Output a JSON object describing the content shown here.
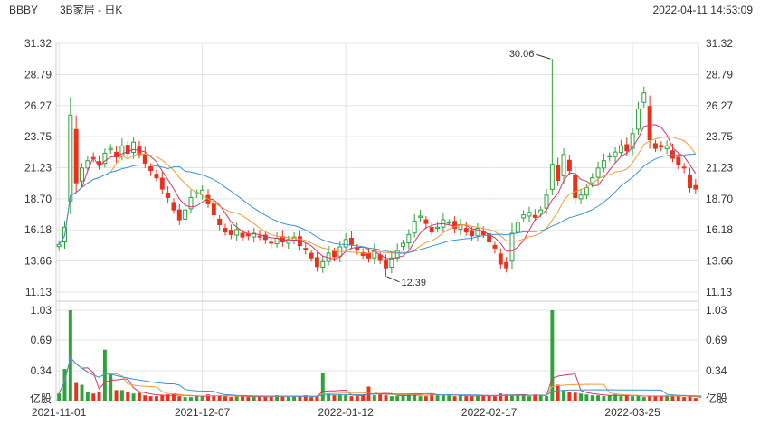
{
  "header": {
    "ticker": "BBBY",
    "name": "3B家居 - 日K",
    "timestamp": "2022-04-11 14:53:09"
  },
  "colors": {
    "up": "#2ea33a",
    "down": "#e8321c",
    "ma5": "#d6336c",
    "ma10": "#f29c38",
    "ma20": "#3a93d6",
    "grid": "#e3e3e3",
    "axis": "#cccccc"
  },
  "chart_data": {
    "type": "candlestick",
    "price_axis": {
      "ticks": [
        "31.32",
        "28.79",
        "26.27",
        "23.75",
        "21.23",
        "18.70",
        "16.18",
        "13.66",
        "11.13"
      ],
      "min": 11.13,
      "max": 31.32
    },
    "volume_axis": {
      "ticks": [
        "1.03",
        "0.69",
        "0.34"
      ],
      "unit": "亿股",
      "max": 1.03
    },
    "date_labels": [
      {
        "index": 0,
        "label": "2021-11-01"
      },
      {
        "index": 25,
        "label": "2021-12-07"
      },
      {
        "index": 50,
        "label": "2022-01-12"
      },
      {
        "index": 75,
        "label": "2022-02-17"
      },
      {
        "index": 100,
        "label": "2022-03-25"
      }
    ],
    "annotations": {
      "high": {
        "index": 86,
        "value": 30.06,
        "label": "30.06"
      },
      "low": {
        "index": 57,
        "value": 12.39,
        "label": "12.39"
      }
    },
    "series_notes": [
      "MA5",
      "MA10",
      "MA20",
      "volume MA"
    ],
    "closes": [
      15.0,
      16.4,
      25.5,
      20.0,
      21.2,
      21.8,
      22.0,
      21.5,
      22.4,
      22.8,
      22.1,
      23.0,
      22.4,
      23.3,
      22.3,
      21.6,
      21.0,
      20.4,
      19.5,
      18.8,
      17.8,
      17.0,
      17.8,
      18.8,
      19.2,
      19.4,
      18.3,
      17.4,
      16.6,
      16.0,
      15.8,
      16.2,
      15.6,
      15.7,
      15.9,
      15.6,
      15.4,
      15.1,
      15.5,
      15.2,
      15.4,
      15.6,
      14.9,
      14.6,
      13.9,
      13.2,
      13.6,
      14.3,
      14.0,
      14.8,
      15.4,
      15.0,
      14.6,
      14.1,
      13.9,
      14.5,
      13.7,
      13.1,
      13.9,
      14.5,
      15.1,
      15.8,
      16.9,
      17.3,
      16.7,
      16.0,
      16.4,
      17.0,
      16.8,
      16.3,
      16.6,
      16.0,
      15.7,
      16.3,
      15.8,
      15.2,
      14.7,
      13.4,
      13.1,
      15.9,
      16.8,
      17.4,
      17.6,
      17.2,
      17.8,
      19.0,
      21.5,
      20.2,
      22.3,
      21.0,
      18.8,
      19.0,
      19.6,
      20.4,
      21.2,
      21.8,
      22.2,
      22.5,
      23.0,
      22.6,
      24.0,
      26.0,
      27.3,
      23.5,
      22.8,
      22.9,
      23.0,
      22.0,
      21.5,
      21.2,
      19.6,
      19.5
    ],
    "volumes": [
      0.08,
      0.36,
      1.03,
      0.2,
      0.18,
      0.1,
      0.08,
      0.1,
      0.58,
      0.3,
      0.12,
      0.12,
      0.1,
      0.08,
      0.09,
      0.06,
      0.05,
      0.05,
      0.06,
      0.07,
      0.08,
      0.05,
      0.04,
      0.04,
      0.06,
      0.05,
      0.07,
      0.05,
      0.06,
      0.05,
      0.04,
      0.05,
      0.05,
      0.04,
      0.04,
      0.05,
      0.04,
      0.05,
      0.06,
      0.05,
      0.04,
      0.05,
      0.05,
      0.06,
      0.04,
      0.05,
      0.32,
      0.08,
      0.06,
      0.07,
      0.06,
      0.05,
      0.05,
      0.06,
      0.16,
      0.06,
      0.07,
      0.06,
      0.05,
      0.05,
      0.06,
      0.07,
      0.08,
      0.05,
      0.05,
      0.08,
      0.07,
      0.06,
      0.06,
      0.05,
      0.06,
      0.05,
      0.05,
      0.06,
      0.05,
      0.06,
      0.05,
      0.08,
      0.07,
      0.06,
      0.07,
      0.06,
      0.05,
      0.07,
      0.06,
      0.05,
      1.03,
      0.18,
      0.12,
      0.1,
      0.09,
      0.08,
      0.07,
      0.06,
      0.06,
      0.05,
      0.06,
      0.07,
      0.05,
      0.06,
      0.05,
      0.06,
      0.04,
      0.05,
      0.05,
      0.05,
      0.06,
      0.06,
      0.05,
      0.04,
      0.05,
      0.03,
      0.02
    ]
  }
}
